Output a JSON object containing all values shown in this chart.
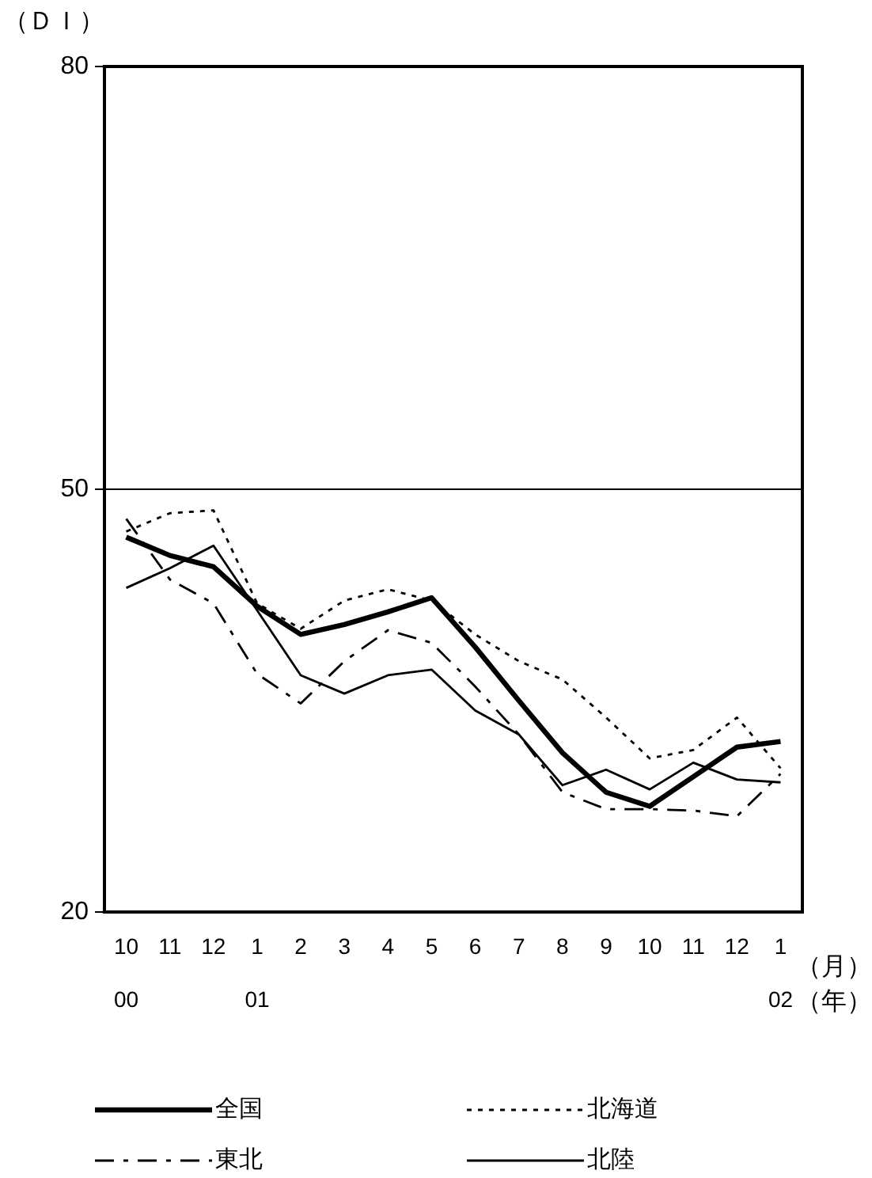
{
  "chart_data": {
    "type": "line",
    "xlabel": "（月）（年）",
    "ylabel": "（ＤＩ）",
    "categories": [
      "10\n00",
      "11",
      "12",
      "1\n01",
      "2",
      "3",
      "4",
      "5",
      "6",
      "7",
      "8",
      "9",
      "10",
      "11",
      "12",
      "1\n02"
    ],
    "series": [
      {
        "name": "全国",
        "color": "#000000",
        "line_style": "solid",
        "values": [
          46.6,
          45.3,
          44.5,
          41.7,
          39.7,
          40.4,
          41.3,
          42.3,
          38.8,
          35.0,
          31.3,
          28.5,
          27.5,
          29.6,
          31.7,
          32.1
        ]
      },
      {
        "name": "北海道",
        "color": "#000000",
        "line_style": "dotted",
        "values": [
          47.0,
          48.3,
          48.5,
          41.9,
          40.1,
          42.1,
          42.9,
          42.1,
          39.7,
          37.8,
          36.5,
          33.8,
          30.9,
          31.5,
          33.8,
          30.2
        ]
      },
      {
        "name": "東北",
        "color": "#000000",
        "line_style": "dashed",
        "values": [
          47.9,
          43.6,
          41.9,
          36.9,
          34.8,
          37.8,
          40.0,
          39.1,
          36.0,
          32.6,
          28.5,
          27.3,
          27.3,
          27.2,
          26.8,
          29.8
        ]
      },
      {
        "name": "北陸",
        "color": "#000000",
        "line_style": "solid",
        "values": [
          43.0,
          44.4,
          46.0,
          41.4,
          36.8,
          35.5,
          36.8,
          37.2,
          34.3,
          32.6,
          29.0,
          30.1,
          28.7,
          30.6,
          29.4,
          29.2
        ]
      }
    ],
    "ylim": [
      20,
      80
    ],
    "yticks": [
      20,
      50,
      80
    ],
    "grid": "y",
    "legend": "bottom",
    "marker": "none"
  }
}
